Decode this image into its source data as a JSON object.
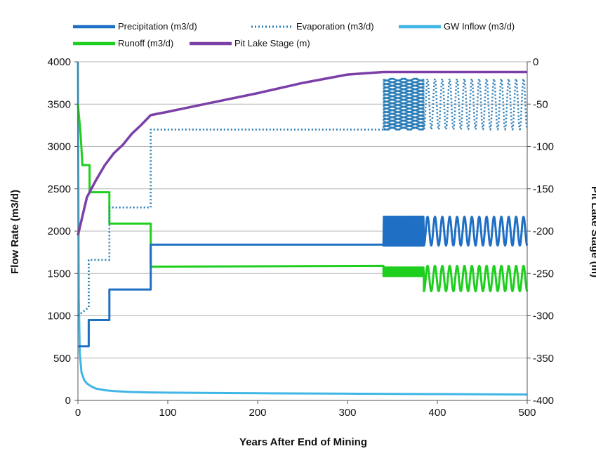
{
  "chart_data": {
    "type": "line",
    "xlabel": "Years After End of Mining",
    "ylabel": "Flow Rate (m3/d)",
    "y2label": "Pit Lake Stage (m)",
    "xlim": [
      0,
      500
    ],
    "ylim": [
      0,
      4000
    ],
    "y2lim": [
      -400,
      0
    ],
    "xticks": [
      0,
      100,
      200,
      300,
      400,
      500
    ],
    "yticks": [
      0,
      500,
      1000,
      1500,
      2000,
      2500,
      3000,
      3500,
      4000
    ],
    "y2ticks": [
      0,
      -50,
      -100,
      -150,
      -200,
      -250,
      -300,
      -350,
      -400
    ],
    "grid": "horizontal",
    "legend_placement": "top",
    "colors": {
      "precipitation": "#1f6fc4",
      "evaporation": "#2a7db8",
      "gw_inflow": "#3fb6e6",
      "runoff": "#1fcf1f",
      "stage": "#7b3fa8"
    },
    "series": [
      {
        "name": "Precipitation (m3/d)",
        "axis": "left",
        "style": "solid",
        "step": [
          [
            0,
            640
          ],
          [
            12,
            640
          ],
          [
            12,
            950
          ],
          [
            35,
            950
          ],
          [
            35,
            1310
          ],
          [
            81,
            1310
          ],
          [
            81,
            1840
          ],
          [
            340,
            1840
          ]
        ],
        "oscillation": [
          {
            "x_from": 340,
            "x_to": 385,
            "low": 1830,
            "high": 2170,
            "dense": true
          },
          {
            "x_from": 385,
            "x_to": 500,
            "low": 1830,
            "high": 2170,
            "cycles": 14
          }
        ]
      },
      {
        "name": "Evaporation (m3/d)",
        "axis": "left",
        "style": "dotted",
        "step": [
          [
            0,
            1000
          ],
          [
            12,
            1100
          ],
          [
            12,
            1660
          ],
          [
            35,
            1660
          ],
          [
            35,
            2280
          ],
          [
            81,
            2280
          ],
          [
            81,
            3200
          ],
          [
            340,
            3200
          ]
        ],
        "oscillation": [
          {
            "x_from": 340,
            "x_to": 385,
            "low": 3200,
            "high": 3800,
            "dense": true
          },
          {
            "x_from": 385,
            "x_to": 500,
            "low": 3200,
            "high": 3800,
            "cycles": 14
          }
        ]
      },
      {
        "name": "GW Inflow (m3/d)",
        "axis": "left",
        "style": "solid",
        "x": [
          0,
          1,
          2,
          4,
          7,
          10,
          15,
          20,
          30,
          40,
          60,
          80,
          100,
          150,
          200,
          300,
          400,
          500
        ],
        "y": [
          4000,
          1200,
          560,
          330,
          240,
          200,
          165,
          140,
          120,
          110,
          100,
          95,
          92,
          88,
          85,
          80,
          75,
          70
        ]
      },
      {
        "name": "Runoff (m3/d)",
        "axis": "left",
        "style": "solid",
        "step": [
          [
            0,
            3500
          ],
          [
            3,
            3150
          ],
          [
            5,
            2780
          ],
          [
            13,
            2780
          ],
          [
            13,
            2460
          ],
          [
            35,
            2460
          ],
          [
            35,
            2090
          ],
          [
            81,
            2090
          ],
          [
            81,
            1580
          ],
          [
            340,
            1590
          ]
        ],
        "oscillation": [
          {
            "x_from": 340,
            "x_to": 385,
            "low": 1470,
            "high": 1570,
            "dense": true
          },
          {
            "x_from": 385,
            "x_to": 500,
            "low": 1290,
            "high": 1590,
            "cycles": 14
          }
        ]
      },
      {
        "name": "Pit Lake Stage (m)",
        "axis": "right",
        "style": "solid",
        "x": [
          0,
          10,
          20,
          30,
          40,
          50,
          60,
          70,
          81,
          100,
          150,
          200,
          250,
          300,
          340,
          350,
          380,
          500
        ],
        "y": [
          -205,
          -160,
          -140,
          -122,
          -108,
          -98,
          -85,
          -75,
          -63,
          -59,
          -48,
          -37,
          -25,
          -15,
          -12,
          -12,
          -12,
          -12
        ]
      }
    ]
  }
}
